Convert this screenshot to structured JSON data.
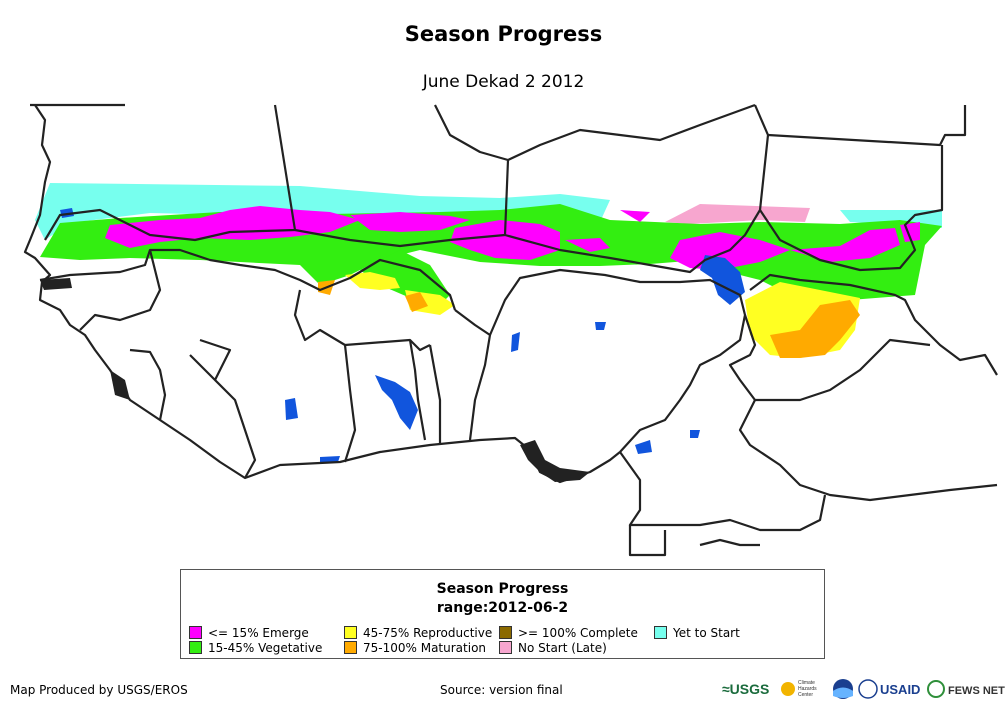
{
  "title": "Season Progress",
  "subtitle": "June Dekad 2 2012",
  "legend": {
    "title": "Season Progress",
    "range": "range:2012-06-2",
    "items": [
      {
        "label": "<= 15% Emerge",
        "color": "#ff00ff"
      },
      {
        "label": "15-45% Vegetative",
        "color": "#33ee11"
      },
      {
        "label": "45-75% Reproductive",
        "color": "#ffff22"
      },
      {
        "label": "75-100% Maturation",
        "color": "#ffaa00"
      },
      {
        "label": ">= 100% Complete",
        "color": "#8b6a00"
      },
      {
        "label": "No Start (Late)",
        "color": "#f7a6cf"
      },
      {
        "label": "Yet to Start",
        "color": "#77ffee"
      }
    ]
  },
  "footer": {
    "producer": "Map Produced by USGS/EROS",
    "source": "Source: version final"
  },
  "logos": {
    "usgs": "≈USGS",
    "chc_line1": "Climate",
    "chc_line2": "Hazards",
    "chc_line3": "Center",
    "usaid": "USAID",
    "fews": "FEWS NET"
  }
}
